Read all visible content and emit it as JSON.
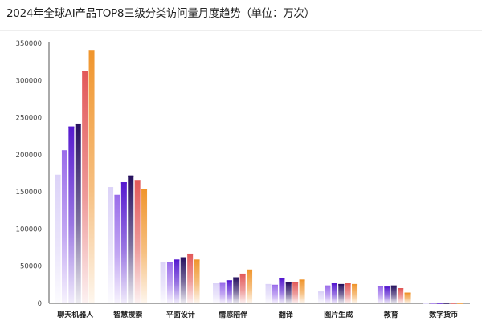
{
  "chart_data": {
    "type": "bar",
    "title": "2024年全球AI产品TOP8三级分类访问量月度趋势（单位：万次）",
    "xlabel": "",
    "ylabel": "",
    "ylim": [
      0,
      350000
    ],
    "yticks": [
      "0",
      "50000",
      "100000",
      "150000",
      "200000",
      "250000",
      "300000",
      "350000"
    ],
    "grid": false,
    "legend": "none",
    "categories": [
      "聊天机器人",
      "智慧搜索",
      "平面设计",
      "情感陪伴",
      "翻译",
      "图片生成",
      "教育",
      "数字货币"
    ],
    "series": [
      {
        "color": "#dcd3f8",
        "values": [
          173000,
          156500,
          55000,
          27000,
          26000,
          16000,
          0,
          800
        ]
      },
      {
        "color": "#9a6cea",
        "values": [
          206000,
          146000,
          56000,
          27500,
          25000,
          24000,
          23000,
          800
        ]
      },
      {
        "color": "#5519cf",
        "values": [
          238000,
          163000,
          59000,
          31000,
          33500,
          27000,
          22500,
          800
        ]
      },
      {
        "color": "#26105e",
        "values": [
          242000,
          172000,
          62000,
          35000,
          28000,
          26000,
          24000,
          800
        ]
      },
      {
        "color": "#e25858",
        "values": [
          313000,
          166000,
          67000,
          40000,
          29000,
          27000,
          20500,
          800
        ]
      },
      {
        "color": "#f0952c",
        "values": [
          341000,
          154000,
          59000,
          45500,
          32000,
          26000,
          14500,
          800
        ]
      }
    ]
  }
}
